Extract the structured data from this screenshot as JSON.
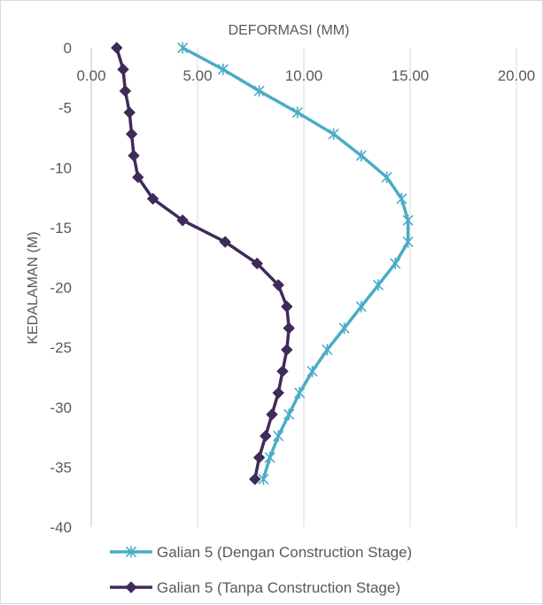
{
  "chart_data": {
    "type": "line",
    "title": "",
    "xlabel": "DEFORMASI (MM)",
    "ylabel": "KEDALAMAN (M)",
    "x_axis_position": "top",
    "xlim": [
      0,
      20
    ],
    "ylim": [
      -40,
      0
    ],
    "x_ticks": [
      "0.00",
      "5.00",
      "10.00",
      "15.00",
      "20.00"
    ],
    "y_ticks": [
      "0",
      "-5",
      "-10",
      "-15",
      "-20",
      "-25",
      "-30",
      "-35",
      "-40"
    ],
    "grid": "vertical",
    "legend_position": "bottom",
    "series": [
      {
        "name": "Galian 5 (Dengan Construction Stage)",
        "color": "#4bacc6",
        "marker": "star",
        "points": [
          [
            4.3,
            0
          ],
          [
            6.2,
            -1.8
          ],
          [
            7.9,
            -3.6
          ],
          [
            9.7,
            -5.4
          ],
          [
            11.4,
            -7.2
          ],
          [
            12.7,
            -9
          ],
          [
            13.9,
            -10.8
          ],
          [
            14.6,
            -12.6
          ],
          [
            14.9,
            -14.4
          ],
          [
            14.9,
            -16.2
          ],
          [
            14.3,
            -18
          ],
          [
            13.5,
            -19.8
          ],
          [
            12.7,
            -21.6
          ],
          [
            11.9,
            -23.4
          ],
          [
            11.1,
            -25.2
          ],
          [
            10.4,
            -27
          ],
          [
            9.8,
            -28.8
          ],
          [
            9.3,
            -30.6
          ],
          [
            8.8,
            -32.4
          ],
          [
            8.4,
            -34.2
          ],
          [
            8.1,
            -36
          ]
        ]
      },
      {
        "name": "Galian 5 (Tanpa Construction Stage)",
        "color": "#3f2b58",
        "marker": "diamond",
        "points": [
          [
            1.2,
            0
          ],
          [
            1.5,
            -1.8
          ],
          [
            1.6,
            -3.6
          ],
          [
            1.8,
            -5.4
          ],
          [
            1.9,
            -7.2
          ],
          [
            2.0,
            -9
          ],
          [
            2.2,
            -10.8
          ],
          [
            2.9,
            -12.6
          ],
          [
            4.3,
            -14.4
          ],
          [
            6.3,
            -16.2
          ],
          [
            7.8,
            -18
          ],
          [
            8.8,
            -19.8
          ],
          [
            9.2,
            -21.6
          ],
          [
            9.3,
            -23.4
          ],
          [
            9.2,
            -25.2
          ],
          [
            9.0,
            -27
          ],
          [
            8.8,
            -28.8
          ],
          [
            8.5,
            -30.6
          ],
          [
            8.2,
            -32.4
          ],
          [
            7.9,
            -34.2
          ],
          [
            7.7,
            -36
          ]
        ]
      }
    ]
  }
}
